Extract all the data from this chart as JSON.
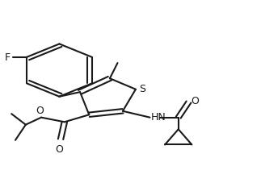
{
  "background_color": "#ffffff",
  "line_color": "#1a1a1a",
  "line_width": 1.5,
  "figsize": [
    3.23,
    2.28
  ],
  "dpi": 100,
  "label_F": "F",
  "label_S": "S",
  "label_O1": "O",
  "label_O2": "O",
  "label_HN": "HN",
  "label_O3": "O"
}
